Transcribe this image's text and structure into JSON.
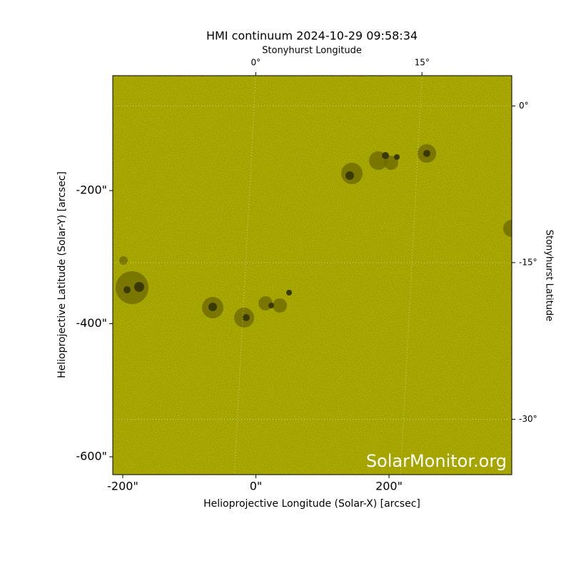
{
  "chart_data": {
    "type": "image",
    "title": "HMI continuum 2024-10-29 09:58:34",
    "x_label": "Helioprojective Longitude (Solar-X) [arcsec]",
    "y_label": "Helioprojective Latitude (Solar-Y) [arcsec]",
    "x2_label": "Stonyhurst Longitude",
    "y2_label": "Stonyhurst Latitude",
    "watermark": "SolarMonitor.org",
    "color": "#c9c800",
    "xlim": [
      -215,
      384.4
    ],
    "ylim": [
      -626.8,
      -27.3
    ],
    "xticks": [
      {
        "value": -200,
        "label": "-200\""
      },
      {
        "value": 0,
        "label": "0\""
      },
      {
        "value": 200,
        "label": "200\""
      }
    ],
    "yticks": [
      {
        "value": -200,
        "label": "-200\""
      },
      {
        "value": -400,
        "label": "-400\""
      },
      {
        "value": -600,
        "label": "-600\""
      }
    ],
    "x2lim": [
      -12.9,
      23.1
    ],
    "x2ticks": [
      {
        "value": 0,
        "label": "0°"
      },
      {
        "value": 15,
        "label": "15°"
      }
    ],
    "y2lim": [
      -35.3,
      2.9
    ],
    "y2ticks": [
      {
        "value": 0,
        "label": "0°"
      },
      {
        "value": -15,
        "label": "-15°"
      },
      {
        "value": -30,
        "label": "-30°"
      }
    ],
    "grid": true
  }
}
